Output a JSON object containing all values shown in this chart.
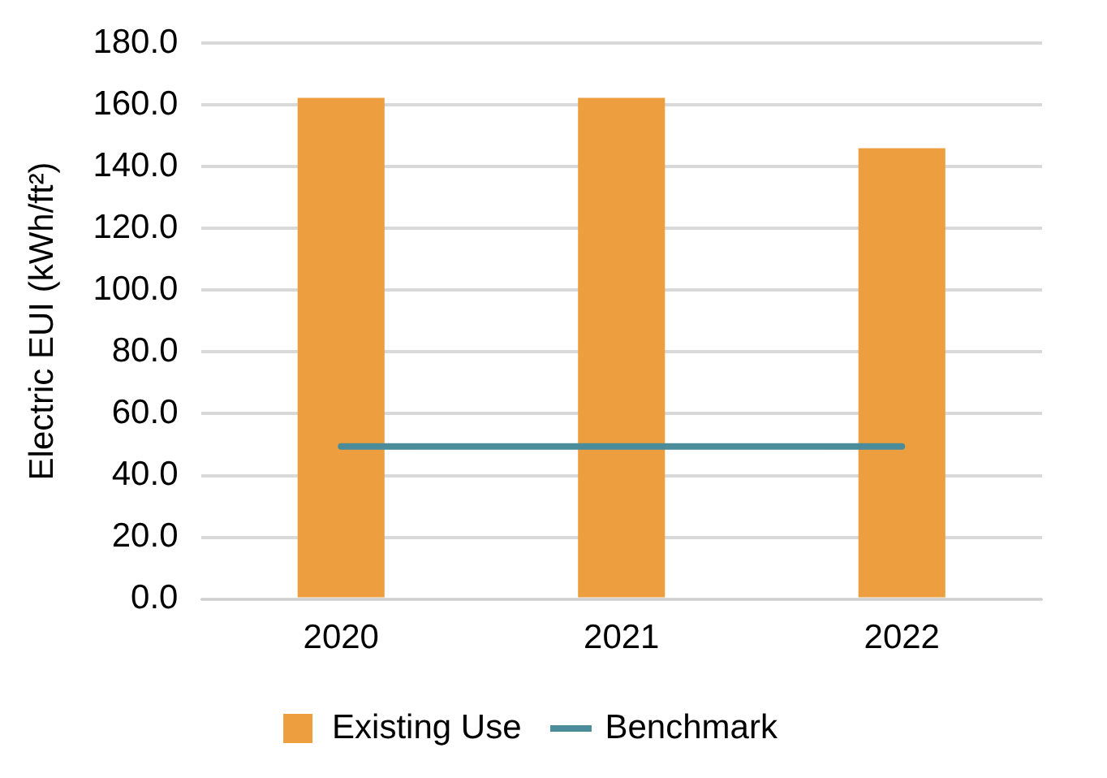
{
  "chart_data": {
    "type": "bar",
    "ylabel": "Electric EUI (kWh/ft²)",
    "categories": [
      "2020",
      "2021",
      "2022"
    ],
    "series": [
      {
        "name": "Existing Use",
        "color": "#ed9e3e",
        "values": [
          162.3,
          162.3,
          146
        ]
      },
      {
        "name": "Benchmark",
        "type": "line",
        "color": "#4a8c9a",
        "values": [
          49.4,
          49.4,
          49.4
        ]
      }
    ],
    "ylim": [
      0,
      180
    ],
    "yticks": [
      {
        "value": 0,
        "label": "0.0"
      },
      {
        "value": 20,
        "label": "20.0"
      },
      {
        "value": 40,
        "label": "40.0"
      },
      {
        "value": 60,
        "label": "60.0"
      },
      {
        "value": 80,
        "label": "80.0"
      },
      {
        "value": 100,
        "label": "100.0"
      },
      {
        "value": 120,
        "label": "120.0"
      },
      {
        "value": 140,
        "label": "140.0"
      },
      {
        "value": 160,
        "label": "160.0"
      },
      {
        "value": 180,
        "label": "180.0"
      }
    ],
    "grid": "y",
    "legend": "bottom",
    "marker": "none"
  }
}
